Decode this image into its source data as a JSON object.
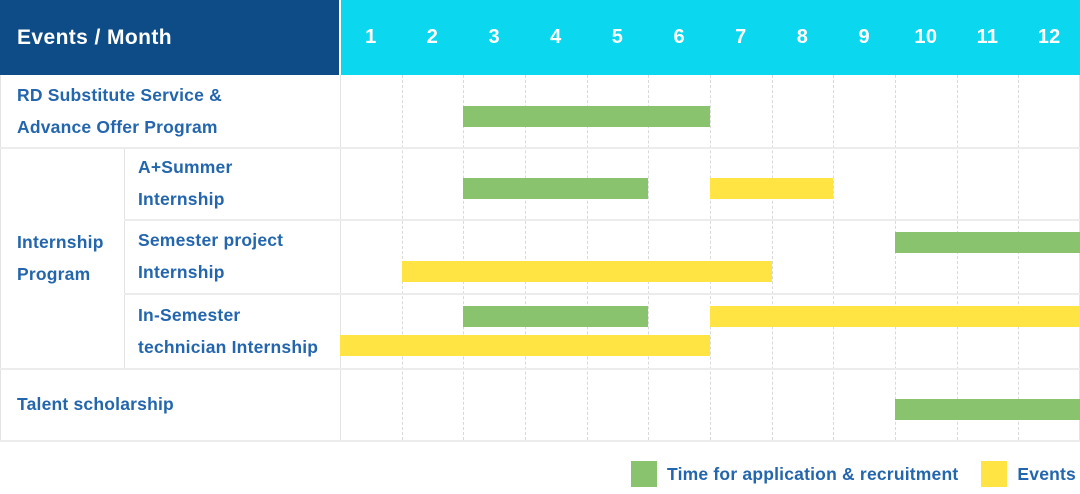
{
  "header": {
    "title": "Events / Month",
    "months": [
      "1",
      "2",
      "3",
      "4",
      "5",
      "6",
      "7",
      "8",
      "9",
      "10",
      "11",
      "12"
    ]
  },
  "colors": {
    "header_navy": "#0d4c86",
    "header_cyan": "#0bd8ee",
    "bar_green": "#8ac36e",
    "bar_yellow": "#ffe444",
    "text_blue": "#2366ad"
  },
  "chart_data": {
    "type": "bar",
    "subtype": "gantt-timeline",
    "title": "Events / Month",
    "x_categories": [
      1,
      2,
      3,
      4,
      5,
      6,
      7,
      8,
      9,
      10,
      11,
      12
    ],
    "x_range": [
      1,
      12
    ],
    "grid": "dashed-vertical-month-lines",
    "legend_position": "bottom-right",
    "legend": [
      {
        "label": "Time for application & recruitment",
        "series": "application",
        "color": "#8ac36e"
      },
      {
        "label": "Events",
        "series": "event",
        "color": "#ffe444"
      }
    ],
    "group_label_lines": [
      "Internship",
      "Program"
    ],
    "rows": [
      {
        "id": "rd-substitute-service",
        "group": null,
        "label_lines": [
          "RD Substitute Service &",
          "Advance Offer Program"
        ],
        "bars": [
          {
            "series": "application",
            "color": "green",
            "start_month": 3,
            "end_month": 6,
            "slot": "single"
          }
        ]
      },
      {
        "id": "a-plus-summer-internship",
        "group": "Internship Program",
        "label_lines": [
          "A+Summer",
          "Internship"
        ],
        "bars": [
          {
            "series": "application",
            "color": "green",
            "start_month": 3,
            "end_month": 5,
            "slot": "single"
          },
          {
            "series": "event",
            "color": "yellow",
            "start_month": 7,
            "end_month": 8,
            "slot": "single"
          }
        ]
      },
      {
        "id": "semester-project-internship",
        "group": "Internship Program",
        "label_lines": [
          "Semester project",
          "Internship"
        ],
        "bars": [
          {
            "series": "application",
            "color": "green",
            "start_month": 10,
            "end_month": 12,
            "slot": "upper"
          },
          {
            "series": "event",
            "color": "yellow",
            "start_month": 2,
            "end_month": 7,
            "slot": "lower"
          }
        ]
      },
      {
        "id": "in-semester-technician-internship",
        "group": "Internship Program",
        "label_lines": [
          "In-Semester",
          "technician Internship"
        ],
        "bars": [
          {
            "series": "application",
            "color": "green",
            "start_month": 3,
            "end_month": 5,
            "slot": "upper"
          },
          {
            "series": "event",
            "color": "yellow",
            "start_month": 7,
            "end_month": 12,
            "slot": "upper"
          },
          {
            "series": "event",
            "color": "yellow",
            "start_month": 1,
            "end_month": 6,
            "slot": "lower"
          }
        ]
      },
      {
        "id": "talent-scholarship",
        "group": null,
        "label_lines": [
          "Talent scholarship"
        ],
        "bars": [
          {
            "series": "application",
            "color": "green",
            "start_month": 10,
            "end_month": 12,
            "slot": "single"
          }
        ]
      }
    ]
  }
}
